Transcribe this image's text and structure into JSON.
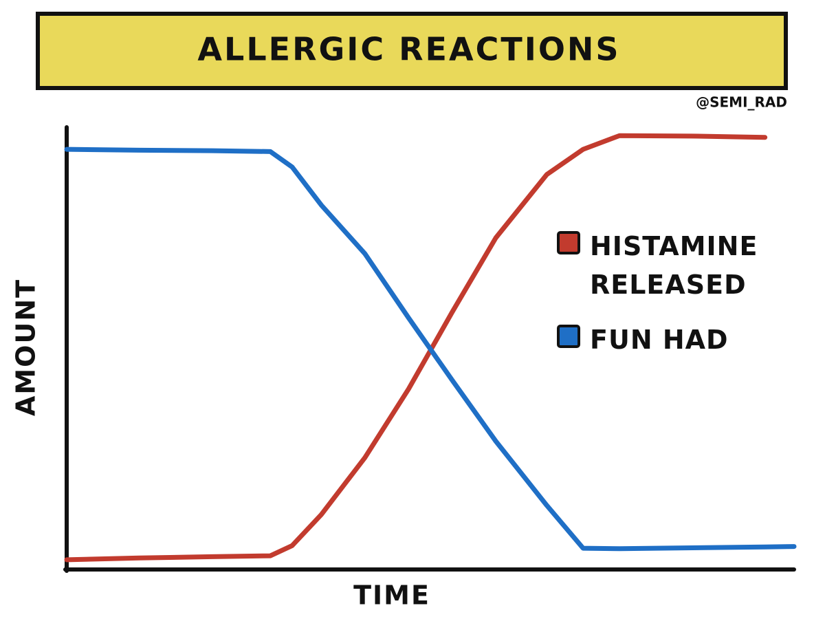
{
  "chart_data": {
    "type": "line",
    "title": "ALLERGIC REACTIONS",
    "credit": "@SEMI_RAD",
    "xlabel": "TIME",
    "ylabel": "AMOUNT",
    "x": [
      0,
      10,
      20,
      28,
      31,
      35,
      41,
      47,
      53,
      59,
      66,
      71,
      76,
      86,
      96,
      100
    ],
    "xlim": [
      0,
      100
    ],
    "ylim": [
      0,
      100
    ],
    "legend": "right",
    "series": [
      {
        "name": "HISTAMINE RELEASED",
        "color": "#c23b2e",
        "values": [
          2.2,
          2.6,
          2.9,
          3.1,
          5.4,
          12.4,
          25.3,
          40.8,
          58.2,
          75,
          89.3,
          95,
          98.1,
          98,
          97.7,
          null
        ]
      },
      {
        "name": "FUN HAD",
        "color": "#1f6fc6",
        "values": [
          95,
          94.8,
          94.7,
          94.5,
          91,
          82.4,
          71.4,
          56.9,
          42.8,
          29,
          14.5,
          4.8,
          4.7,
          4.9,
          5.1,
          5.2
        ]
      }
    ]
  }
}
